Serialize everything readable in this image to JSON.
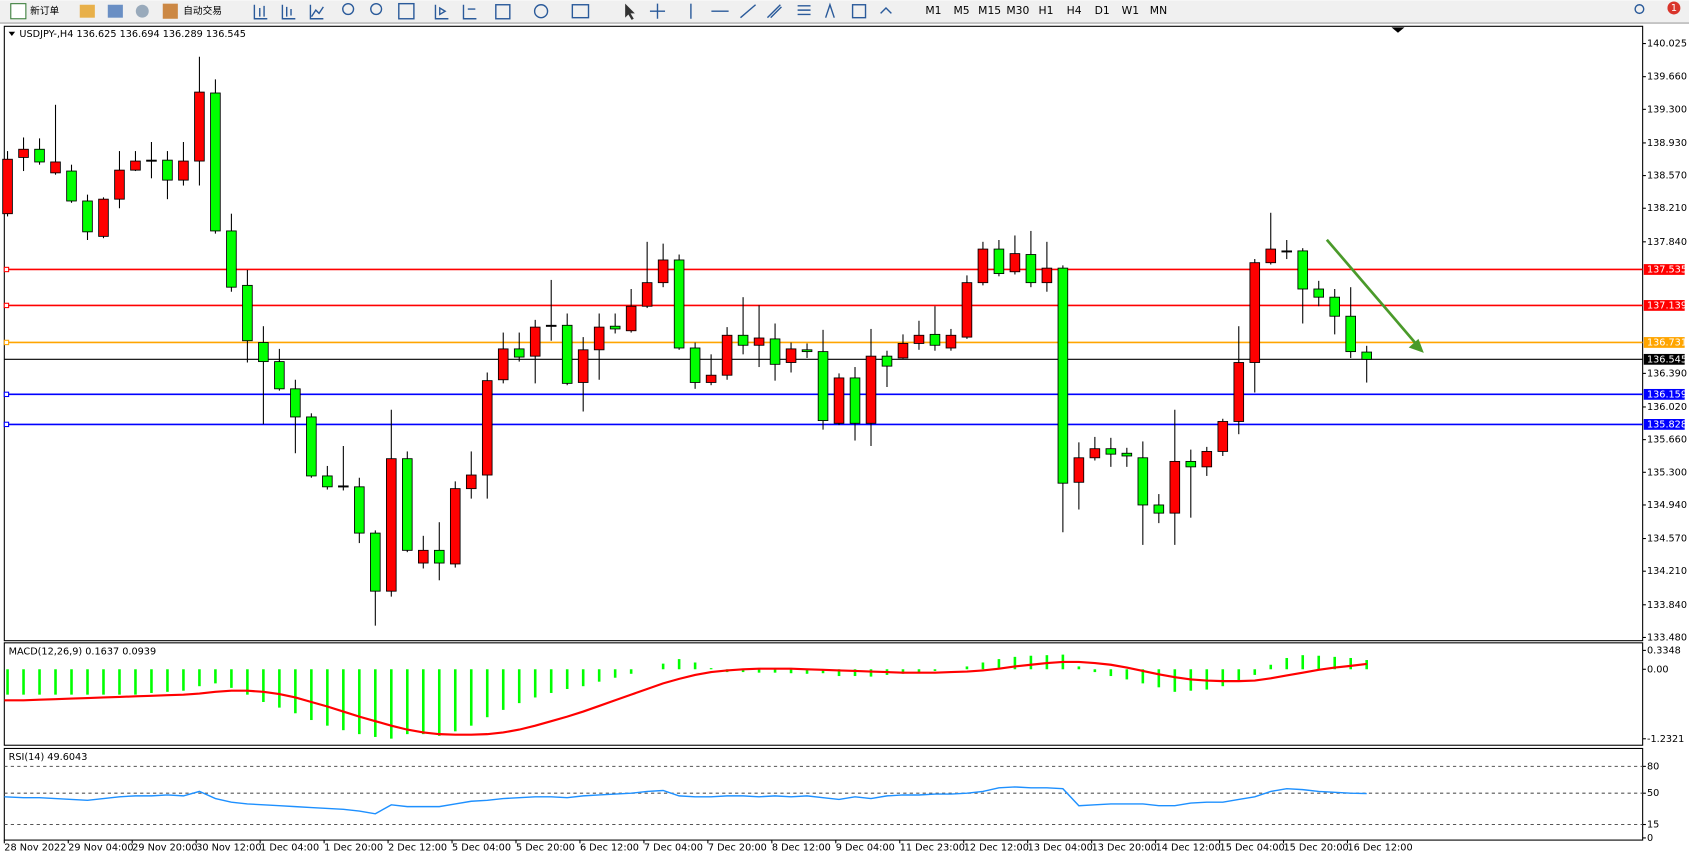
{
  "toolbar": {
    "buttons": [
      "新订单",
      "自动交易"
    ],
    "timeframes": [
      "M1",
      "M5",
      "M15",
      "M30",
      "H1",
      "H4",
      "D1",
      "W1",
      "MN"
    ],
    "notification": 1
  },
  "chart_data": [
    {
      "type": "candlestick",
      "title": "USDJPY-,H4  136.625 136.694 136.289 136.545",
      "up_color": "#ff0000",
      "down_color": "#00ff00",
      "x": [
        "28 Nov 2022",
        null,
        null,
        null,
        "29 Nov 04:00",
        null,
        null,
        null,
        "29 Nov 20:00",
        null,
        null,
        null,
        "30 Nov 12:00",
        null,
        null,
        null,
        "1 Dec 04:00",
        null,
        null,
        null,
        "1 Dec 20:00",
        null,
        null,
        null,
        "2 Dec 12:00",
        null,
        null,
        null,
        "5 Dec 04:00",
        null,
        null,
        null,
        "5 Dec 20:00",
        null,
        null,
        null,
        "6 Dec 12:00",
        null,
        null,
        null,
        "7 Dec 04:00",
        null,
        null,
        null,
        "7 Dec 20:00",
        null,
        null,
        null,
        "8 Dec 12:00",
        null,
        null,
        null,
        "9 Dec 04:00",
        null,
        null,
        null,
        "11 Dec 23:00",
        null,
        null,
        null,
        "12 Dec 12:00",
        null,
        null,
        null,
        "13 Dec 04:00",
        null,
        null,
        null,
        "13 Dec 20:00",
        null,
        null,
        null,
        "14 Dec 12:00",
        null,
        null,
        null,
        "15 Dec 04:00",
        null,
        null,
        null,
        "15 Dec 20:00",
        null,
        null,
        null,
        "16 Dec 12:00",
        null
      ],
      "open": [
        138.15,
        138.77,
        138.86,
        138.6,
        138.62,
        138.29,
        137.9,
        138.31,
        138.63,
        138.74,
        138.74,
        138.52,
        138.73,
        139.48,
        137.96,
        137.36,
        136.73,
        136.52,
        136.22,
        135.91,
        135.26,
        135.15,
        135.14,
        134.63,
        133.99,
        135.45,
        134.3,
        134.44,
        134.29,
        135.12,
        135.27,
        136.32,
        136.66,
        136.58,
        136.92,
        136.92,
        136.29,
        136.65,
        136.91,
        136.86,
        137.13,
        137.39,
        137.64,
        136.67,
        136.29,
        136.37,
        136.81,
        136.7,
        136.77,
        136.51,
        136.65,
        136.63,
        135.84,
        136.34,
        135.84,
        136.58,
        136.56,
        136.72,
        136.82,
        136.67,
        136.79,
        137.39,
        137.76,
        137.51,
        137.7,
        137.39,
        137.55,
        135.19,
        135.46,
        135.56,
        135.51,
        135.46,
        134.94,
        134.85,
        135.42,
        135.36,
        135.53,
        135.86,
        136.51,
        137.61,
        137.74,
        137.74,
        137.32,
        137.23,
        137.02,
        136.625
      ],
      "high": [
        138.84,
        138.99,
        138.98,
        139.35,
        138.69,
        138.36,
        138.33,
        138.84,
        138.84,
        138.94,
        138.84,
        138.94,
        139.88,
        139.63,
        138.15,
        137.53,
        136.91,
        136.66,
        136.32,
        135.95,
        135.37,
        135.59,
        135.24,
        134.66,
        135.99,
        135.53,
        134.6,
        134.75,
        135.2,
        135.53,
        136.4,
        136.84,
        136.84,
        136.98,
        137.42,
        137.05,
        136.79,
        137.05,
        137.05,
        137.32,
        137.84,
        137.82,
        137.7,
        136.73,
        136.6,
        136.9,
        137.23,
        137.14,
        136.94,
        136.73,
        136.72,
        136.87,
        136.39,
        136.46,
        136.88,
        136.64,
        136.82,
        136.97,
        137.13,
        136.88,
        137.47,
        137.84,
        137.86,
        137.91,
        137.96,
        137.84,
        137.58,
        135.63,
        135.69,
        135.68,
        135.57,
        135.64,
        135.06,
        135.99,
        135.55,
        135.58,
        135.89,
        136.91,
        137.65,
        138.16,
        137.86,
        137.77,
        137.41,
        137.32,
        137.34,
        136.694
      ],
      "low": [
        138.12,
        138.62,
        138.69,
        138.58,
        138.27,
        137.86,
        137.88,
        138.21,
        138.62,
        138.54,
        138.31,
        138.46,
        138.46,
        137.93,
        137.29,
        136.51,
        135.83,
        136.2,
        135.51,
        135.24,
        135.11,
        135.1,
        134.52,
        133.61,
        133.93,
        134.42,
        134.24,
        134.11,
        134.25,
        135.01,
        135.01,
        136.28,
        136.52,
        136.28,
        136.75,
        136.26,
        135.97,
        136.32,
        136.83,
        136.84,
        137.11,
        137.34,
        136.65,
        136.22,
        136.26,
        136.32,
        136.6,
        136.46,
        136.31,
        136.4,
        136.56,
        135.77,
        135.82,
        135.65,
        135.59,
        136.24,
        136.55,
        136.65,
        136.64,
        136.64,
        136.77,
        137.36,
        137.46,
        137.48,
        137.34,
        137.29,
        134.64,
        134.89,
        135.43,
        135.36,
        135.36,
        134.5,
        134.74,
        134.5,
        134.8,
        135.26,
        135.48,
        135.72,
        136.18,
        137.59,
        137.65,
        136.94,
        137.13,
        136.82,
        136.56,
        136.289
      ],
      "close": [
        138.75,
        138.86,
        138.72,
        138.72,
        138.29,
        137.95,
        138.31,
        138.63,
        138.73,
        138.74,
        138.52,
        138.73,
        139.49,
        137.96,
        137.34,
        136.75,
        136.52,
        136.22,
        135.91,
        135.26,
        135.14,
        135.15,
        134.63,
        133.99,
        135.45,
        134.44,
        134.44,
        134.3,
        135.12,
        135.27,
        136.31,
        136.66,
        136.57,
        136.9,
        136.92,
        136.28,
        136.65,
        136.9,
        136.88,
        137.13,
        137.39,
        137.64,
        136.67,
        136.29,
        136.37,
        136.81,
        136.7,
        136.78,
        136.49,
        136.66,
        136.63,
        135.87,
        136.34,
        135.84,
        136.58,
        136.47,
        136.72,
        136.81,
        136.7,
        136.81,
        137.39,
        137.76,
        137.49,
        137.71,
        137.39,
        137.55,
        135.18,
        135.46,
        135.56,
        135.5,
        135.48,
        134.94,
        134.85,
        135.42,
        135.36,
        135.53,
        135.86,
        136.51,
        137.61,
        137.76,
        137.74,
        137.32,
        137.23,
        137.02,
        136.63,
        136.545
      ],
      "ylim": [
        133.48,
        140.025
      ],
      "yticks": [
        {
          "value": 140.025,
          "label": "140.025"
        },
        {
          "value": 139.66,
          "label": "139.660"
        },
        {
          "value": 139.3,
          "label": "139.300"
        },
        {
          "value": 138.93,
          "label": "138.930"
        },
        {
          "value": 138.57,
          "label": "138.570"
        },
        {
          "value": 138.21,
          "label": "138.210"
        },
        {
          "value": 137.84,
          "label": "137.840"
        },
        {
          "value": 136.39,
          "label": "136.390"
        },
        {
          "value": 136.02,
          "label": "136.020"
        },
        {
          "value": 135.66,
          "label": "135.660"
        },
        {
          "value": 135.3,
          "label": "135.300"
        },
        {
          "value": 134.94,
          "label": "134.940"
        },
        {
          "value": 134.57,
          "label": "134.570"
        },
        {
          "value": 134.21,
          "label": "134.210"
        },
        {
          "value": 133.84,
          "label": "133.840"
        },
        {
          "value": 133.48,
          "label": "133.480"
        }
      ],
      "levels": [
        {
          "value": 137.535,
          "color": "#ff0000"
        },
        {
          "value": 137.139,
          "color": "#ff0000"
        },
        {
          "value": 136.731,
          "color": "#ffa500"
        },
        {
          "value": 136.545,
          "color": "#000000"
        },
        {
          "value": 136.159,
          "color": "#0000ff"
        },
        {
          "value": 135.828,
          "color": "#0000ff"
        }
      ]
    },
    {
      "type": "macd",
      "title": "MACD(12,26,9) 0.1637 0.0939",
      "hist_color": "#00ff00",
      "signal_color": "#ff0000",
      "histogram": [
        -0.45,
        -0.45,
        -0.45,
        -0.45,
        -0.45,
        -0.45,
        -0.45,
        -0.45,
        -0.45,
        -0.42,
        -0.4,
        -0.38,
        -0.3,
        -0.25,
        -0.33,
        -0.45,
        -0.58,
        -0.68,
        -0.78,
        -0.9,
        -1.0,
        -1.08,
        -1.15,
        -1.2,
        -1.23,
        -1.15,
        -1.15,
        -1.18,
        -1.1,
        -1.0,
        -0.85,
        -0.72,
        -0.6,
        -0.5,
        -0.42,
        -0.35,
        -0.3,
        -0.22,
        -0.15,
        -0.08,
        0.0,
        0.1,
        0.18,
        0.12,
        0.02,
        -0.05,
        -0.05,
        -0.06,
        -0.06,
        -0.07,
        -0.08,
        -0.07,
        -0.12,
        -0.12,
        -0.13,
        -0.1,
        -0.08,
        -0.05,
        -0.03,
        0.0,
        0.05,
        0.12,
        0.18,
        0.22,
        0.24,
        0.25,
        0.26,
        0.05,
        -0.05,
        -0.12,
        -0.18,
        -0.25,
        -0.32,
        -0.4,
        -0.38,
        -0.36,
        -0.3,
        -0.22,
        -0.1,
        0.08,
        0.2,
        0.25,
        0.24,
        0.22,
        0.2,
        0.1637
      ],
      "signal": [
        -0.55,
        -0.55,
        -0.54,
        -0.53,
        -0.52,
        -0.51,
        -0.5,
        -0.49,
        -0.48,
        -0.47,
        -0.46,
        -0.45,
        -0.43,
        -0.4,
        -0.38,
        -0.38,
        -0.4,
        -0.44,
        -0.5,
        -0.58,
        -0.66,
        -0.75,
        -0.84,
        -0.92,
        -1.0,
        -1.07,
        -1.12,
        -1.15,
        -1.16,
        -1.16,
        -1.15,
        -1.12,
        -1.07,
        -1.0,
        -0.92,
        -0.84,
        -0.75,
        -0.65,
        -0.55,
        -0.45,
        -0.35,
        -0.25,
        -0.17,
        -0.1,
        -0.05,
        -0.02,
        0.0,
        0.01,
        0.01,
        0.01,
        0.0,
        -0.01,
        -0.02,
        -0.03,
        -0.04,
        -0.05,
        -0.06,
        -0.06,
        -0.06,
        -0.05,
        -0.04,
        -0.02,
        0.01,
        0.05,
        0.08,
        0.11,
        0.13,
        0.13,
        0.11,
        0.08,
        0.03,
        -0.03,
        -0.09,
        -0.14,
        -0.18,
        -0.2,
        -0.21,
        -0.21,
        -0.2,
        -0.16,
        -0.11,
        -0.06,
        -0.01,
        0.03,
        0.06,
        0.0939
      ],
      "ylim": [
        -1.2321,
        0.3348
      ],
      "yticks": [
        0.3348,
        {
          "value": 0,
          "label": "0.00"
        },
        -1.2321
      ]
    },
    {
      "type": "line",
      "title": "RSI(14) 49.6043",
      "color": "#1e90ff",
      "values": [
        46,
        45,
        45,
        44,
        43,
        42,
        44,
        46,
        47,
        47,
        48,
        47,
        52,
        44,
        40,
        38,
        37,
        36,
        35,
        34,
        33,
        32,
        30,
        27,
        37,
        35,
        35,
        35,
        38,
        41,
        42,
        44,
        45,
        46,
        46,
        45,
        47,
        48,
        49,
        50,
        52,
        53,
        47,
        46,
        46,
        47,
        47,
        46,
        47,
        46,
        47,
        45,
        43,
        46,
        44,
        47,
        48,
        48,
        49,
        49,
        50,
        52,
        56,
        57,
        56,
        56,
        55,
        36,
        37,
        38,
        38,
        38,
        36,
        36,
        39,
        40,
        40,
        43,
        46,
        52,
        55,
        54,
        52,
        51,
        50,
        49.6043
      ],
      "ylim": [
        0,
        100
      ],
      "yticks": [
        80,
        50,
        15,
        0
      ]
    }
  ]
}
